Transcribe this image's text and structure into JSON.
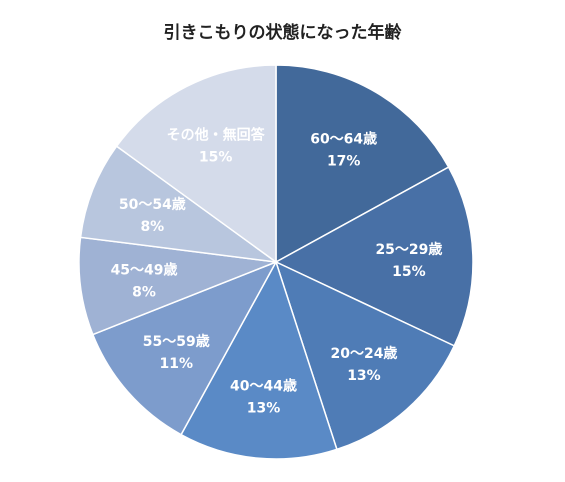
{
  "chart_data": {
    "type": "pie",
    "title": "引きこもりの状態になった年齢",
    "start_angle_deg": 0,
    "direction": "clockwise",
    "slices": [
      {
        "label": "60〜64歳",
        "value": 17,
        "value_label": "17%",
        "color": "#42699a"
      },
      {
        "label": "25〜29歳",
        "value": 15,
        "value_label": "15%",
        "color": "#4870a6"
      },
      {
        "label": "20〜24歳",
        "value": 13,
        "value_label": "13%",
        "color": "#4f7cb6"
      },
      {
        "label": "40〜44歳",
        "value": 13,
        "value_label": "13%",
        "color": "#5a8ac6"
      },
      {
        "label": "55〜59歳",
        "value": 11,
        "value_label": "11%",
        "color": "#7d9ccc"
      },
      {
        "label": "45〜49歳",
        "value": 8,
        "value_label": "8%",
        "color": "#9fb2d4"
      },
      {
        "label": "50〜54歳",
        "value": 8,
        "value_label": "8%",
        "color": "#b8c6de"
      },
      {
        "label": "その他・無回答",
        "value": 15,
        "value_label": "15%",
        "color": "#d4dbea"
      }
    ]
  }
}
